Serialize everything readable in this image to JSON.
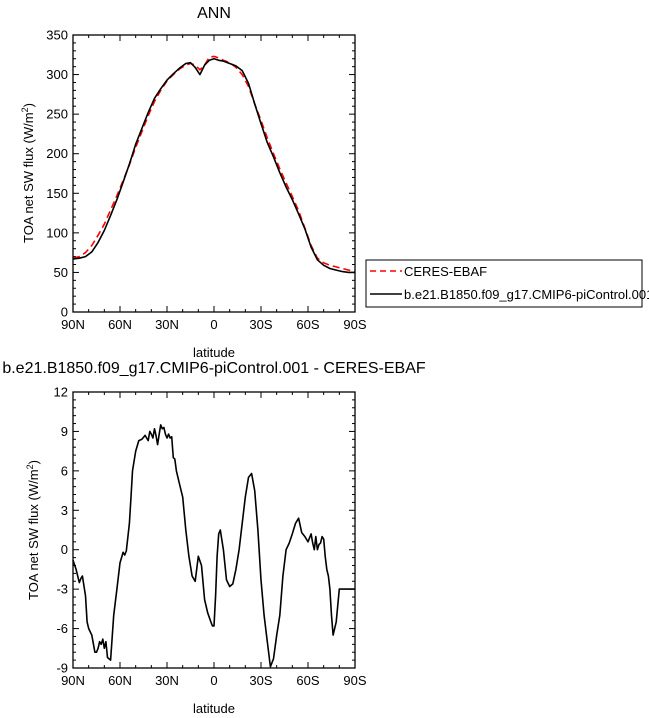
{
  "chart_data": [
    {
      "type": "line",
      "title": "ANN",
      "xlabel": "latitude",
      "ylabel": "TOA net SW flux (W/m",
      "ylabel_sup": "2",
      "ylabel_suffix": ")",
      "xlim": [
        90,
        -90
      ],
      "ylim": [
        0,
        350
      ],
      "x_ticks": [
        90,
        60,
        30,
        0,
        -30,
        -60,
        -90
      ],
      "x_tick_labels": [
        "90N",
        "60N",
        "30N",
        "0",
        "30S",
        "60S",
        "90S"
      ],
      "y_ticks": [
        0,
        50,
        100,
        150,
        200,
        250,
        300,
        350
      ],
      "y_tick_labels": [
        "0",
        "50",
        "100",
        "150",
        "200",
        "250",
        "300",
        "350"
      ],
      "legend": "outside-right",
      "grid": false,
      "series": [
        {
          "name": "CERES-EBAF",
          "color": "#ff0000",
          "style": "dashed",
          "x": [
            90,
            86,
            82,
            78,
            74,
            70,
            66,
            62,
            58,
            54,
            50,
            46,
            42,
            38,
            34,
            30,
            26,
            22,
            18,
            15,
            12,
            9,
            6,
            3,
            0,
            -3,
            -6,
            -10,
            -14,
            -18,
            -22,
            -26,
            -30,
            -34,
            -38,
            -42,
            -46,
            -50,
            -54,
            -58,
            -62,
            -66,
            -70,
            -74,
            -78,
            -82,
            -86,
            -90
          ],
          "y": [
            68,
            70,
            75,
            84,
            97,
            111,
            129,
            147,
            166,
            186,
            208,
            228,
            248,
            266,
            280,
            292,
            300,
            307,
            312,
            314,
            312,
            306,
            312,
            322,
            323,
            321,
            318,
            315,
            309,
            300,
            285,
            263,
            242,
            220,
            200,
            181,
            163,
            146,
            128,
            106,
            84,
            68,
            62,
            59,
            57,
            55,
            53,
            51
          ]
        },
        {
          "name": "b.e21.B1850.f09_g17.CMIP6-piControl.001",
          "color": "#000000",
          "style": "solid",
          "x": [
            90,
            86,
            82,
            78,
            74,
            70,
            66,
            62,
            58,
            54,
            50,
            46,
            42,
            38,
            34,
            30,
            26,
            22,
            18,
            15,
            12,
            9,
            6,
            3,
            0,
            -3,
            -6,
            -10,
            -14,
            -18,
            -22,
            -26,
            -30,
            -34,
            -38,
            -42,
            -46,
            -50,
            -54,
            -58,
            -62,
            -66,
            -70,
            -74,
            -78,
            -82,
            -86,
            -90
          ],
          "y": [
            67,
            68,
            70,
            76,
            88,
            103,
            122,
            142,
            164,
            187,
            212,
            232,
            252,
            270,
            282,
            293,
            301,
            308,
            314,
            315,
            309,
            300,
            312,
            318,
            320,
            318,
            317,
            314,
            311,
            305,
            289,
            263,
            238,
            214,
            196,
            176,
            158,
            142,
            124,
            105,
            82,
            66,
            59,
            55,
            53,
            51,
            50,
            50
          ]
        }
      ]
    },
    {
      "type": "line",
      "title": "b.e21.B1850.f09_g17.CMIP6-piControl.001 - CERES-EBAF",
      "xlabel": "latitude",
      "ylabel": "TOA net SW flux (W/m",
      "ylabel_sup": "2",
      "ylabel_suffix": ")",
      "xlim": [
        90,
        -90
      ],
      "ylim": [
        -9,
        12
      ],
      "x_ticks": [
        90,
        60,
        30,
        0,
        -30,
        -60,
        -90
      ],
      "x_tick_labels": [
        "90N",
        "60N",
        "30N",
        "0",
        "30S",
        "60S",
        "90S"
      ],
      "y_ticks": [
        -9,
        -6,
        -3,
        0,
        3,
        6,
        9,
        12
      ],
      "y_tick_labels": [
        "-9",
        "-6",
        "-3",
        "0",
        "3",
        "6",
        "9",
        "12"
      ],
      "grid": false,
      "series": [
        {
          "color": "#000000",
          "style": "solid",
          "x": [
            90,
            88,
            86,
            85,
            84,
            82,
            81,
            80,
            78,
            76,
            75,
            74,
            73,
            72,
            71,
            70,
            69,
            68,
            66,
            64,
            62,
            60,
            58,
            57,
            56,
            54,
            53,
            52,
            50,
            48,
            46,
            44,
            42,
            41,
            40,
            39,
            38,
            37,
            36,
            35,
            34,
            33,
            32,
            31,
            30,
            29,
            28,
            27,
            26,
            25,
            24,
            22,
            20,
            18,
            16,
            14,
            12,
            10,
            8,
            6,
            4,
            2,
            1,
            0,
            -1,
            -2,
            -3,
            -4,
            -6,
            -8,
            -10,
            -12,
            -14,
            -16,
            -18,
            -20,
            -22,
            -24,
            -26,
            -28,
            -30,
            -32,
            -34,
            -36,
            -38,
            -40,
            -42,
            -44,
            -46,
            -48,
            -50,
            -52,
            -54,
            -56,
            -58,
            -60,
            -62,
            -63,
            -64,
            -65,
            -66,
            -67,
            -68,
            -69,
            -70,
            -71,
            -72,
            -73,
            -74,
            -75,
            -76,
            -78,
            -80,
            -82,
            -84,
            -86,
            -88,
            -90
          ],
          "y": [
            -0.8,
            -1.5,
            -2.5,
            -2.2,
            -2.0,
            -3.5,
            -5.5,
            -6.0,
            -6.5,
            -7.8,
            -7.8,
            -7.5,
            -7.0,
            -7.2,
            -6.8,
            -7.5,
            -7.0,
            -8.2,
            -8.4,
            -5.0,
            -3.0,
            -1.0,
            -0.2,
            -0.4,
            -0.1,
            2.0,
            4.0,
            6.0,
            7.5,
            8.3,
            8.4,
            8.7,
            8.3,
            9.0,
            8.8,
            8.5,
            9.2,
            8.7,
            8.0,
            8.8,
            9.5,
            9.2,
            9.3,
            8.8,
            8.5,
            8.8,
            8.5,
            8.6,
            7.0,
            6.9,
            6.0,
            5.0,
            4.0,
            1.5,
            -0.5,
            -2.0,
            -2.4,
            -0.5,
            -1.2,
            -3.8,
            -4.8,
            -5.5,
            -5.8,
            -5.8,
            -3.5,
            -0.5,
            1.2,
            1.5,
            0.0,
            -2.3,
            -2.8,
            -2.6,
            -1.5,
            0.0,
            2.0,
            4.0,
            5.5,
            5.8,
            4.5,
            1.5,
            -2.3,
            -5.0,
            -7.0,
            -8.9,
            -8.3,
            -6.5,
            -5.0,
            -2.0,
            0.0,
            0.5,
            1.2,
            2.0,
            2.4,
            1.3,
            1.0,
            0.6,
            1.2,
            0.5,
            0.0,
            1.0,
            0.0,
            0.4,
            0.5,
            1.0,
            0.8,
            -0.5,
            -1.5,
            -2.0,
            -3.0,
            -5.0,
            -6.5,
            -5.5,
            -3.0,
            -3.0,
            -3.0,
            -3.0,
            -3.0,
            -3.0
          ]
        }
      ]
    }
  ]
}
